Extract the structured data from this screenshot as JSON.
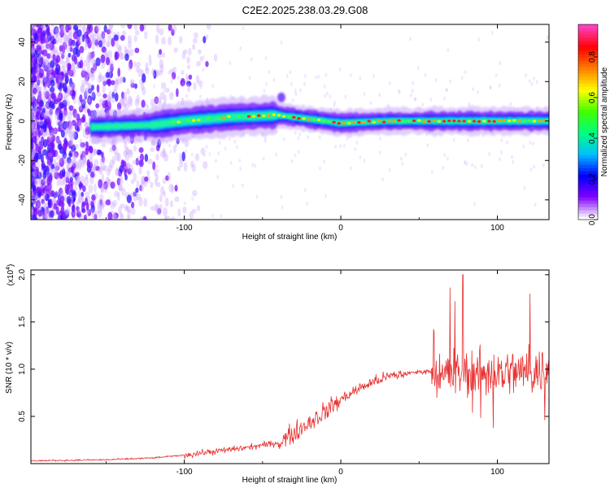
{
  "title": "C2E2.2025.238.03.29.G08",
  "chart_data": [
    {
      "type": "heatmap",
      "xlabel": "Height of straight line (km)",
      "ylabel": "Frequency (Hz)",
      "xlim": [
        -198,
        133
      ],
      "ylim": [
        -50,
        49
      ],
      "x_ticks": [
        -100,
        0,
        100
      ],
      "x_tick_labels": [
        "-100",
        "0",
        "100"
      ],
      "y_ticks": [
        -40,
        -20,
        0,
        20,
        40
      ],
      "y_tick_labels": [
        "-40",
        "-20",
        "0",
        "20",
        "40"
      ],
      "colorbar": {
        "label": "Normalized spectral amplitude",
        "range": [
          0,
          0.96
        ],
        "ticks": [
          0,
          0.2,
          0.4,
          0.6,
          0.8
        ],
        "tick_labels": [
          "0.0",
          "0.2",
          "0.4",
          "0.6",
          "0.8"
        ],
        "colors": [
          "#ffffff",
          "#8000ff",
          "#0000ff",
          "#00c0ff",
          "#00ff80",
          "#40ff00",
          "#ffff00",
          "#ff8000",
          "#ff0000",
          "#ff40c0"
        ]
      },
      "ridge": [
        {
          "x": -155,
          "y": -3
        },
        {
          "x": -120,
          "y": -2
        },
        {
          "x": -100,
          "y": 0
        },
        {
          "x": -70,
          "y": 2
        },
        {
          "x": -40,
          "y": 3
        },
        {
          "x": -20,
          "y": 1
        },
        {
          "x": 0,
          "y": -1
        },
        {
          "x": 30,
          "y": 0
        },
        {
          "x": 60,
          "y": 0
        },
        {
          "x": 100,
          "y": 0
        },
        {
          "x": 133,
          "y": 0
        }
      ]
    },
    {
      "type": "line",
      "xlabel": "Height of straight line (km)",
      "ylabel": "SNR (10 * v/v)",
      "y_multiplier": "(x10",
      "y_multiplier_exp": "4",
      "y_multiplier_close": ")",
      "xlim": [
        -198,
        133
      ],
      "ylim": [
        0,
        2.05
      ],
      "x_ticks": [
        -100,
        0,
        100
      ],
      "x_tick_labels": [
        "-100",
        "0",
        "100"
      ],
      "y_ticks": [
        0.5,
        1.0,
        1.5,
        2.0
      ],
      "y_tick_labels": [
        "0.5",
        "1.0",
        "1.5",
        "2.0"
      ],
      "color": "#e83030",
      "envelope": [
        {
          "x": -198,
          "y": 0.03
        },
        {
          "x": -150,
          "y": 0.04
        },
        {
          "x": -120,
          "y": 0.06
        },
        {
          "x": -100,
          "y": 0.09
        },
        {
          "x": -80,
          "y": 0.13
        },
        {
          "x": -60,
          "y": 0.17
        },
        {
          "x": -40,
          "y": 0.22
        },
        {
          "x": -30,
          "y": 0.32
        },
        {
          "x": -20,
          "y": 0.44
        },
        {
          "x": -10,
          "y": 0.55
        },
        {
          "x": 0,
          "y": 0.68
        },
        {
          "x": 10,
          "y": 0.78
        },
        {
          "x": 20,
          "y": 0.86
        },
        {
          "x": 30,
          "y": 0.92
        },
        {
          "x": 40,
          "y": 0.95
        },
        {
          "x": 50,
          "y": 0.97
        },
        {
          "x": 58,
          "y": 0.98
        },
        {
          "x": 70,
          "y": 0.95
        },
        {
          "x": 90,
          "y": 0.96
        },
        {
          "x": 110,
          "y": 0.97
        },
        {
          "x": 133,
          "y": 0.98
        }
      ],
      "peak": {
        "x": 78,
        "y": 2.0
      }
    }
  ]
}
